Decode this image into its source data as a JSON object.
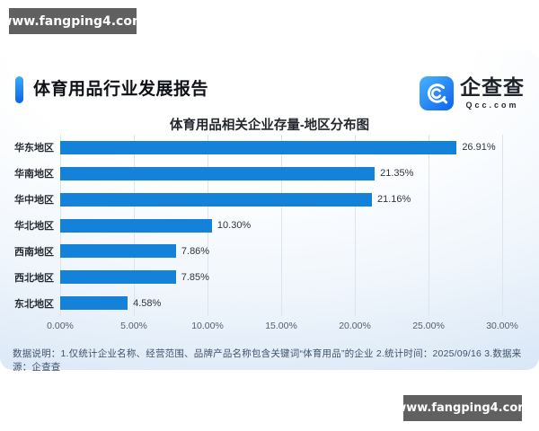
{
  "watermark": {
    "text": "www.fangping4.com"
  },
  "header": {
    "title": "体育用品行业发展报告"
  },
  "brand": {
    "name": "企查查",
    "domain": "Qcc.com"
  },
  "chart_data": {
    "type": "bar",
    "orientation": "horizontal",
    "title": "体育用品相关企业存量-地区分布图",
    "categories": [
      "华东地区",
      "华南地区",
      "华中地区",
      "华北地区",
      "西南地区",
      "西北地区",
      "东北地区"
    ],
    "values": [
      26.91,
      21.35,
      21.16,
      10.3,
      7.86,
      7.85,
      4.58
    ],
    "value_labels": [
      "26.91%",
      "21.35%",
      "21.16%",
      "10.30%",
      "7.86%",
      "7.85%",
      "4.58%"
    ],
    "x_ticks": [
      "0.00%",
      "5.00%",
      "10.00%",
      "15.00%",
      "20.00%",
      "25.00%",
      "30.00%"
    ],
    "xlim": [
      0,
      30
    ],
    "bar_color": "#1482d9",
    "grid": true,
    "legend": false
  },
  "footer": {
    "note": "数据说明：1.仅统计企业名称、经营范围、品牌产品名称包含关键词“体育用品”的企业  2.统计时间：2025/09/16   3.数据来源：企查查"
  }
}
